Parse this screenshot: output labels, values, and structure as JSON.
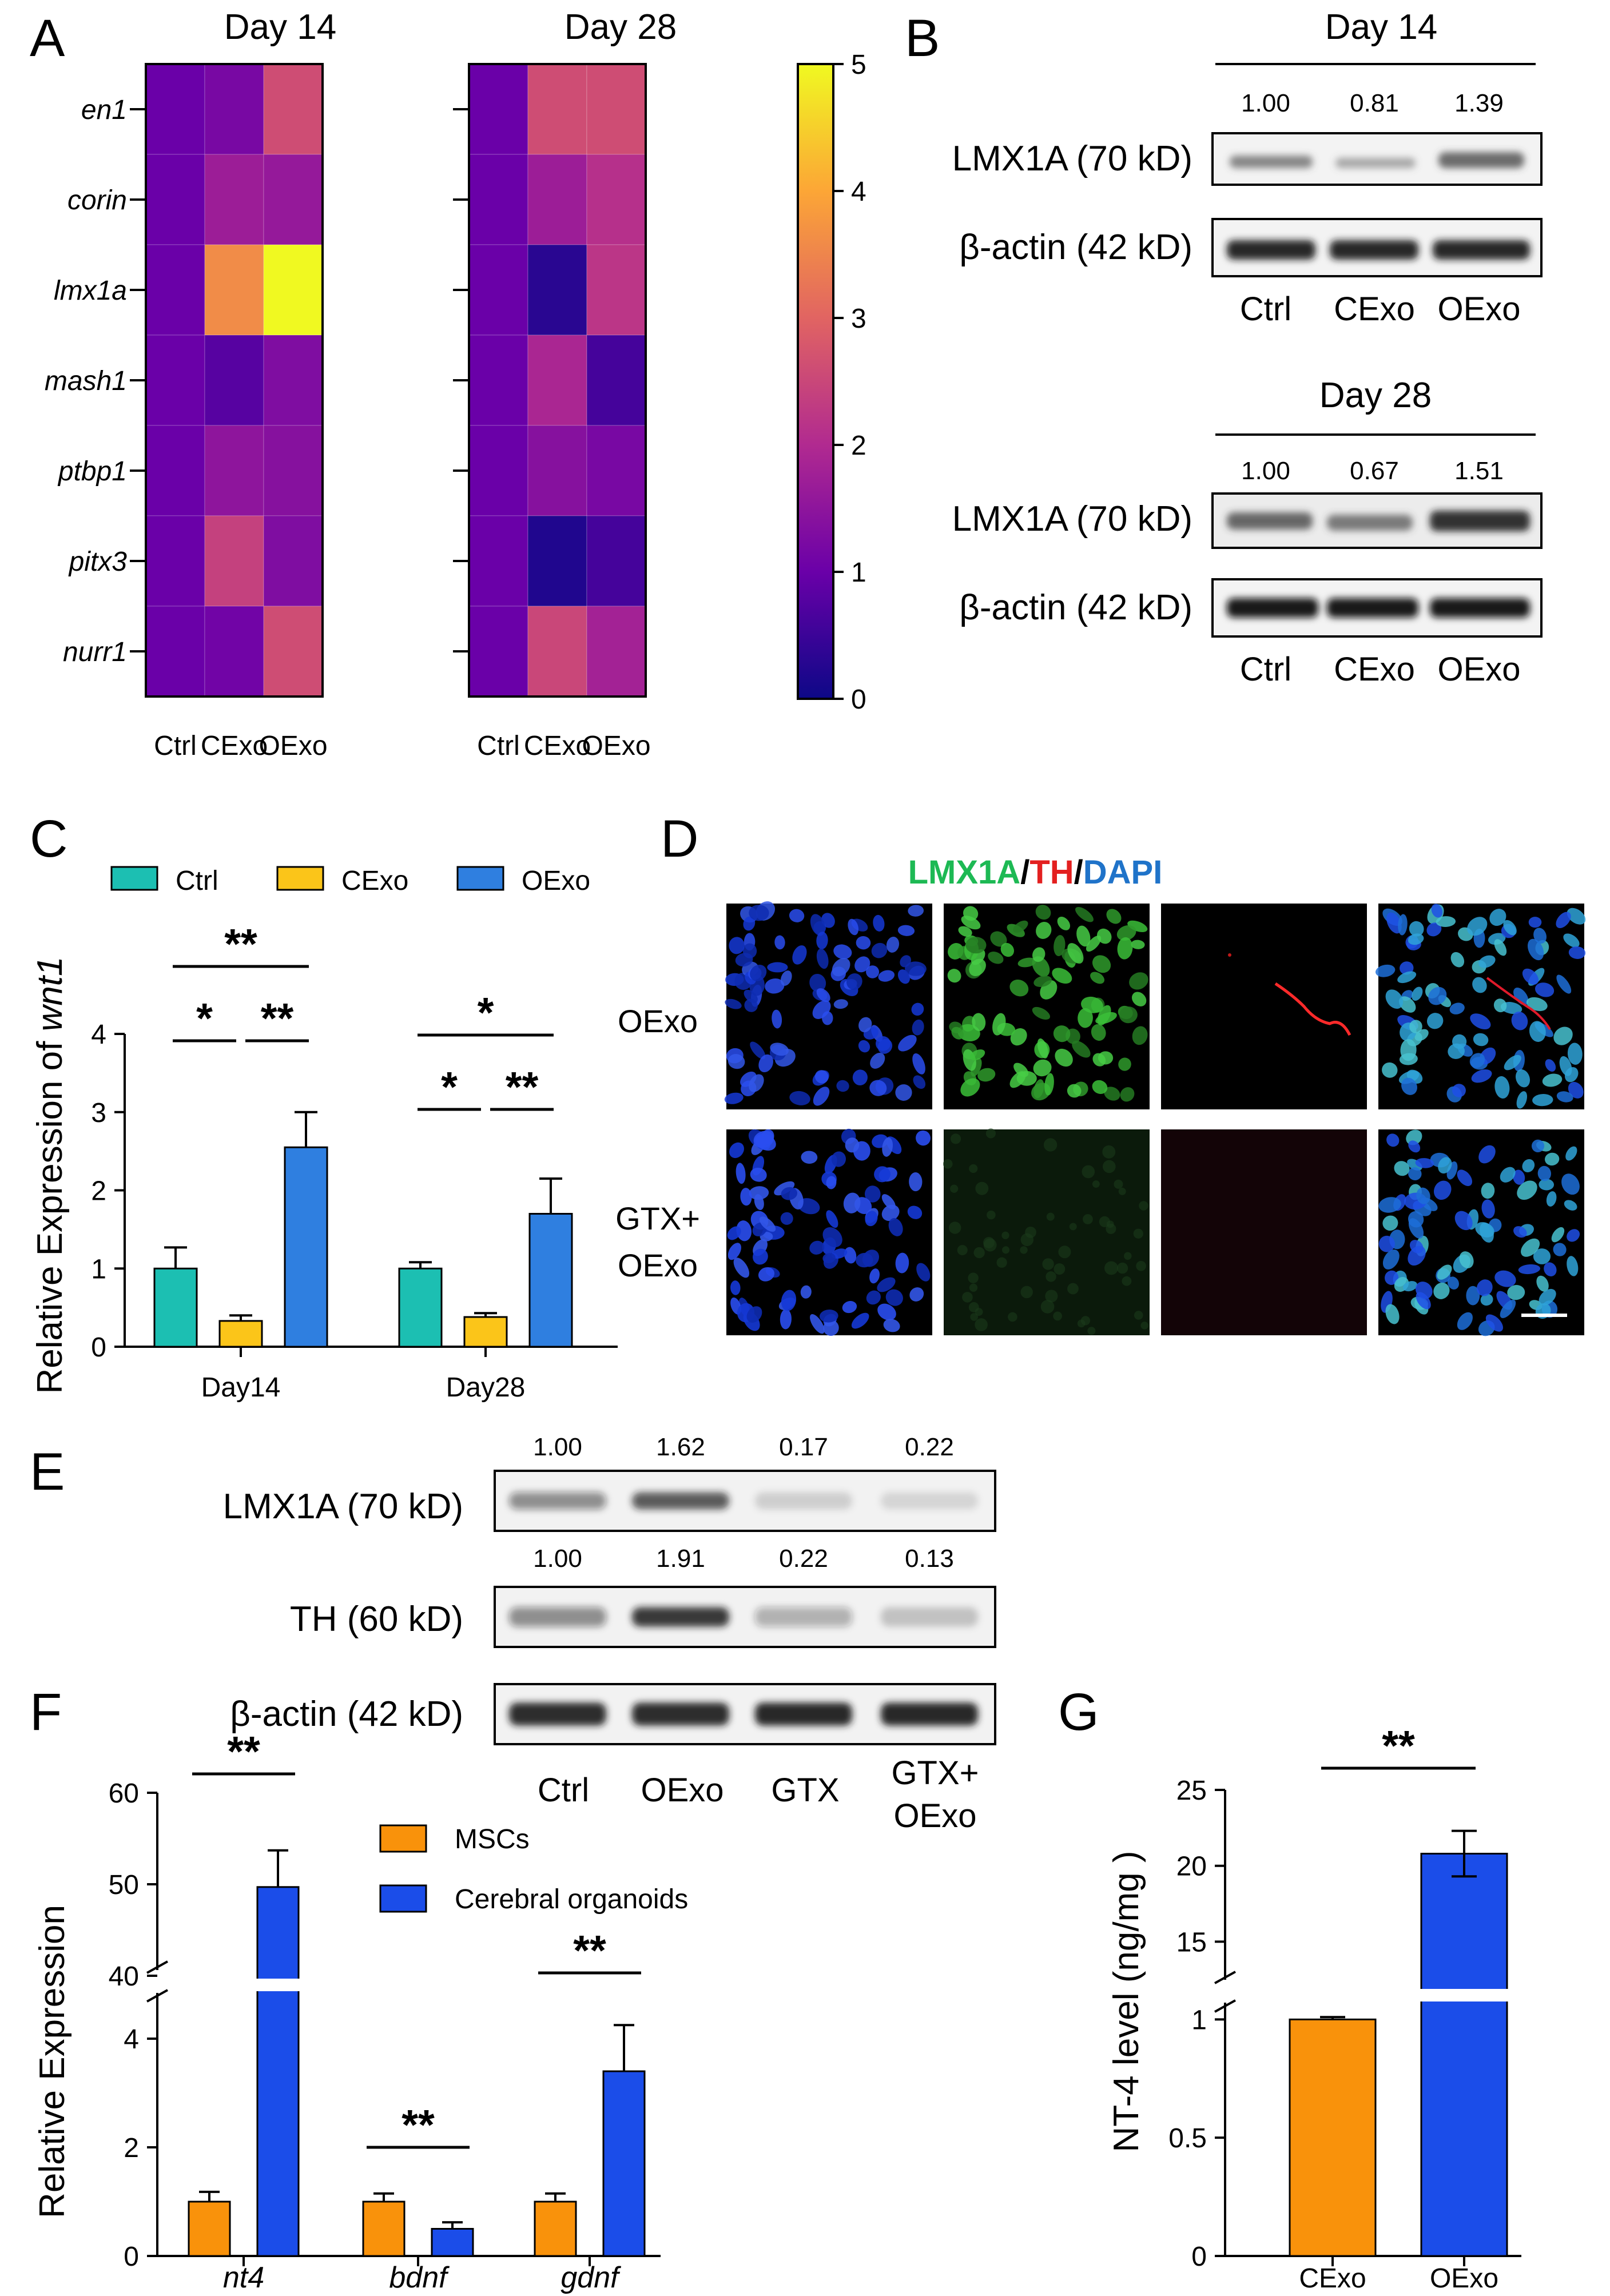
{
  "panels": {
    "A": "A",
    "B": "B",
    "C": "C",
    "D": "D",
    "E": "E",
    "F": "F",
    "G": "G"
  },
  "heatmap": {
    "genes": [
      "en1",
      "corin",
      "lmx1a",
      "mash1",
      "ptbp1",
      "pitx3",
      "nurr1"
    ],
    "columns": [
      "Ctrl",
      "CExo",
      "OExo"
    ],
    "colorbar_ticks": [
      "0",
      "1",
      "2",
      "3",
      "4",
      "5"
    ],
    "vmin": 0,
    "vmax": 5
  },
  "chart_data": [
    {
      "type": "heatmap",
      "panel": "A",
      "title": "Day 14",
      "rows": [
        "en1",
        "corin",
        "lmx1a",
        "mash1",
        "ptbp1",
        "pitx3",
        "nurr1"
      ],
      "columns": [
        "Ctrl",
        "CExo",
        "OExo"
      ],
      "values": [
        [
          1.0,
          1.2,
          2.6
        ],
        [
          1.0,
          1.7,
          1.6
        ],
        [
          1.0,
          3.6,
          5.0
        ],
        [
          1.0,
          0.8,
          1.3
        ],
        [
          1.0,
          1.5,
          1.4
        ],
        [
          1.0,
          2.4,
          1.3
        ],
        [
          1.0,
          1.1,
          2.6
        ]
      ],
      "colormap": "plasma",
      "range": [
        0,
        5
      ]
    },
    {
      "type": "heatmap",
      "panel": "A",
      "title": "Day 28",
      "rows": [
        "en1",
        "corin",
        "lmx1a",
        "mash1",
        "ptbp1",
        "pitx3",
        "nurr1"
      ],
      "columns": [
        "Ctrl",
        "CExo",
        "OExo"
      ],
      "values": [
        [
          1.0,
          2.6,
          2.6
        ],
        [
          1.0,
          1.7,
          2.1
        ],
        [
          1.0,
          0.3,
          2.2
        ],
        [
          1.0,
          1.9,
          0.6
        ],
        [
          1.0,
          1.4,
          1.2
        ],
        [
          1.0,
          0.2,
          0.6
        ],
        [
          1.0,
          2.5,
          1.8
        ]
      ],
      "colormap": "plasma",
      "range": [
        0,
        5
      ]
    },
    {
      "type": "bar",
      "panel": "C",
      "title": "",
      "ylabel": "Relative Expression of ",
      "ylabel_gene": "wnt1",
      "categories": [
        "Day14",
        "Day28"
      ],
      "series": [
        {
          "name": "Ctrl",
          "color": "#1cbfb2",
          "values": [
            1.0,
            1.0
          ],
          "errors": [
            0.27,
            0.08
          ]
        },
        {
          "name": "CExo",
          "color": "#fbc519",
          "values": [
            0.33,
            0.38
          ],
          "errors": [
            0.07,
            0.05
          ]
        },
        {
          "name": "OExo",
          "color": "#2f7fe0",
          "values": [
            2.55,
            1.7
          ],
          "errors": [
            0.45,
            0.45
          ]
        }
      ],
      "ylim": [
        0,
        4
      ],
      "yticks": [
        "0",
        "1",
        "2",
        "3",
        "4"
      ],
      "significance": [
        {
          "label": "**",
          "group": 0,
          "pair": "Ctrl-OExo"
        },
        {
          "label": "*",
          "group": 0,
          "pair": "Ctrl-CExo"
        },
        {
          "label": "**",
          "group": 0,
          "pair": "CExo-OExo"
        },
        {
          "label": "*",
          "group": 1,
          "pair": "Ctrl-OExo"
        },
        {
          "label": "*",
          "group": 1,
          "pair": "Ctrl-CExo"
        },
        {
          "label": "**",
          "group": 1,
          "pair": "CExo-OExo"
        }
      ]
    },
    {
      "type": "bar",
      "panel": "F",
      "ylabel": "Relative Expression",
      "categories": [
        "nt4",
        "bdnf",
        "gdnf"
      ],
      "series": [
        {
          "name": "MSCs",
          "color": "#f9920b",
          "values": [
            1.0,
            1.0,
            1.0
          ],
          "errors": [
            0.18,
            0.15,
            0.15
          ]
        },
        {
          "name": "Cerebral organoids",
          "color": "#1b4de9",
          "values": [
            49.7,
            0.5,
            3.4
          ],
          "errors": [
            4.0,
            0.12,
            0.85
          ]
        }
      ],
      "axis_break": {
        "lower": [
          0,
          5
        ],
        "upper": [
          40,
          60
        ]
      },
      "yticks_lower": [
        "0",
        "2",
        "4"
      ],
      "yticks_upper": [
        "40",
        "50",
        "60"
      ],
      "significance": [
        "**",
        "**",
        "**"
      ]
    },
    {
      "type": "bar",
      "panel": "G",
      "ylabel": "NT-4 level (ng/mg )",
      "categories": [
        "CExo",
        "OExo"
      ],
      "colors": [
        "#f9920b",
        "#1b4de9"
      ],
      "values": [
        1.0,
        20.8
      ],
      "errors": [
        0.01,
        1.5
      ],
      "axis_break": {
        "lower": [
          0,
          1.1
        ],
        "upper": [
          12,
          25
        ]
      },
      "yticks_lower": [
        "0",
        "0.5",
        "1"
      ],
      "yticks_upper": [
        "15",
        "20",
        "25"
      ],
      "significance": [
        "**"
      ]
    }
  ],
  "westernB": {
    "day14": {
      "title": "Day 14",
      "values": [
        "1.00",
        "0.81",
        "1.39"
      ],
      "band1": "LMX1A (70 kD)",
      "band2": "β-actin (42 kD)",
      "lanes": [
        "Ctrl",
        "CExo",
        "OExo"
      ]
    },
    "day28": {
      "title": "Day 28",
      "values": [
        "1.00",
        "0.67",
        "1.51"
      ],
      "band1": "LMX1A (70 kD)",
      "band2": "β-actin (42 kD)",
      "lanes": [
        "Ctrl",
        "CExo",
        "OExo"
      ]
    }
  },
  "panelD": {
    "title_parts": [
      "LMX1A",
      "/",
      "TH",
      "/",
      "DAPI"
    ],
    "colors": {
      "green": "#1db954",
      "red": "#e32020",
      "blue": "#1f73c9"
    },
    "row1": "OExo",
    "row2a": "GTX+",
    "row2b": "OExo"
  },
  "westernE": {
    "lmx_values": [
      "1.00",
      "1.62",
      "0.17",
      "0.22"
    ],
    "th_values": [
      "1.00",
      "1.91",
      "0.22",
      "0.13"
    ],
    "band1": "LMX1A (70 kD)",
    "band2": "TH (60 kD)",
    "band3": "β-actin (42 kD)",
    "lanes": [
      "Ctrl",
      "OExo",
      "GTX"
    ],
    "lane4a": "GTX+",
    "lane4b": "OExo"
  }
}
